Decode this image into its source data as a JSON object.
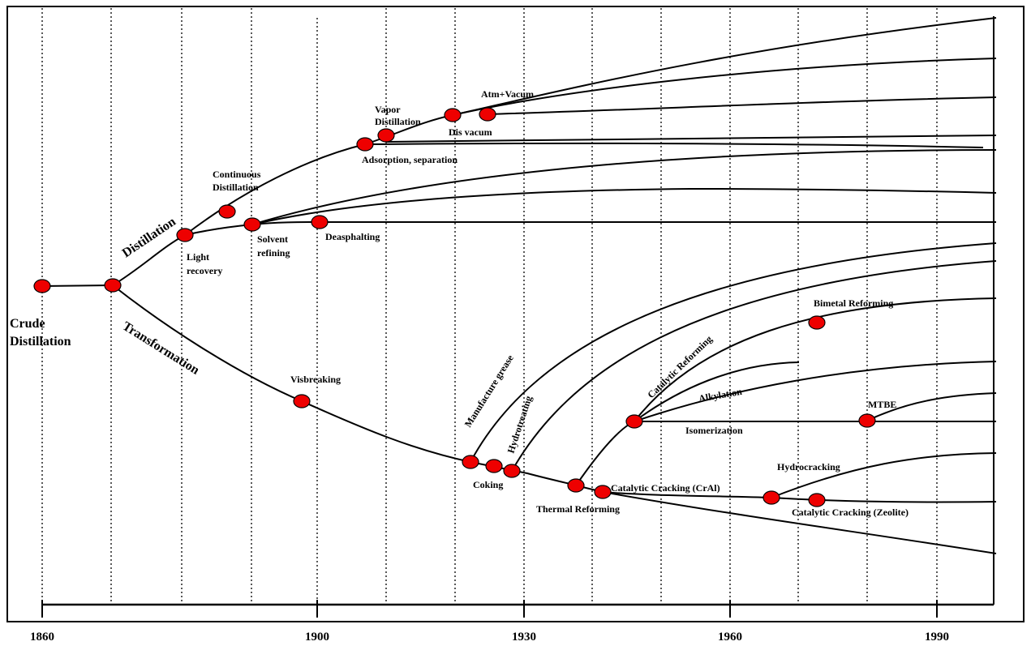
{
  "timeline": {
    "years": [
      "1860",
      "1900",
      "1930",
      "1960",
      "1990"
    ]
  },
  "labels": {
    "crude_distillation": [
      "Crude",
      "Distillation"
    ],
    "distillation": "Distillation",
    "transformation": "Transformation",
    "continuous_distillation": [
      "Continuous",
      "Distillation"
    ],
    "light_recovery": [
      "Light",
      "recovery"
    ],
    "solvent_refining": [
      "Solvent",
      "refining"
    ],
    "deasphalting": "Deasphalting",
    "adsorption_separation": "Adsorption, separation",
    "vapor_distillation": [
      "Vapor",
      "Distillation"
    ],
    "dis_vacum": "Dis vacum",
    "atm_vacum": "Atm+Vacum",
    "visbreaking": "Visbreaking",
    "manufacture_grease": "Manufacture grease",
    "hydrotreating": "Hydrotreating",
    "coking": "Coking",
    "thermal_reforming": "Thermal Reforming",
    "catalytic_cracking_cra": "Catalytic Cracking (CrAl)",
    "catalytic_reforming": "Catalytic Reforming",
    "bimetal_reforming": "Bimetal Reforming",
    "alkylation": "Alkylation",
    "isomerization": "Isomerization",
    "mtbe": "MTBE",
    "hydrocracking": "Hydrocracking",
    "catalytic_cracking_zeolite": "Catalytic Cracking (Zeolite)"
  },
  "colors": {
    "node_fill": "#ee0000",
    "line": "#000000",
    "background": "#ffffff"
  }
}
